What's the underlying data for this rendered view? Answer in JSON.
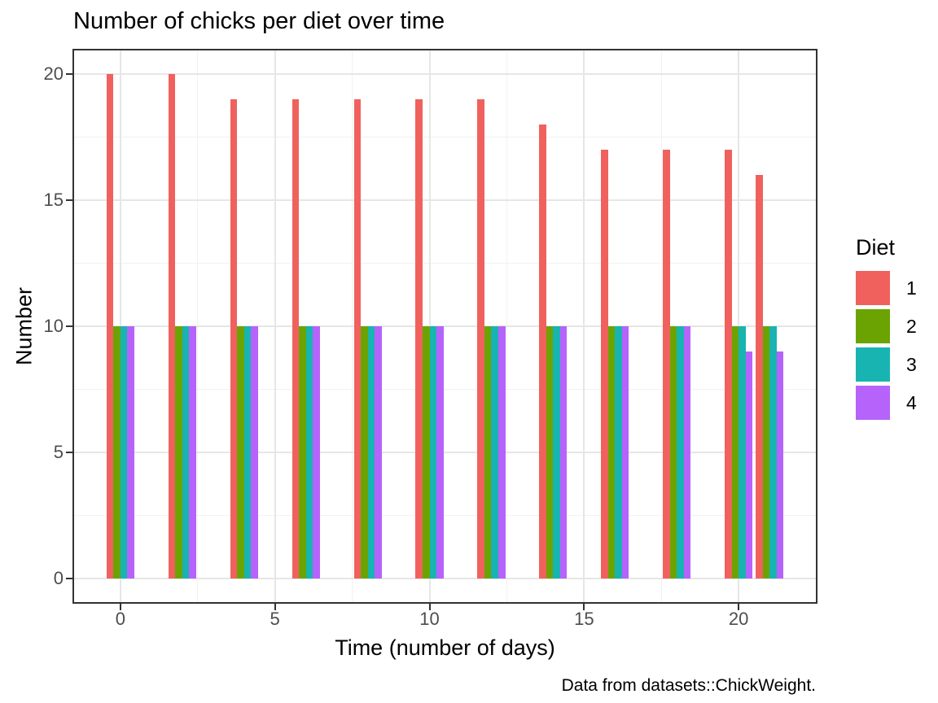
{
  "title": "Number of chicks per diet over time",
  "caption": "Data from datasets::ChickWeight.",
  "legend": {
    "title": "Diet",
    "position": "right"
  },
  "chart_data": {
    "type": "bar",
    "title": "Number of chicks per diet over time",
    "xlabel": "Time (number of days)",
    "ylabel": "Number",
    "x": [
      0,
      2,
      4,
      6,
      8,
      10,
      12,
      14,
      16,
      18,
      20,
      21
    ],
    "series": [
      {
        "name": "1",
        "color": "#F0615D",
        "values": [
          20,
          20,
          19,
          19,
          19,
          19,
          19,
          18,
          17,
          17,
          17,
          16
        ]
      },
      {
        "name": "2",
        "color": "#6BA402",
        "values": [
          10,
          10,
          10,
          10,
          10,
          10,
          10,
          10,
          10,
          10,
          10,
          10
        ]
      },
      {
        "name": "3",
        "color": "#18B4B1",
        "values": [
          10,
          10,
          10,
          10,
          10,
          10,
          10,
          10,
          10,
          10,
          10,
          10
        ]
      },
      {
        "name": "4",
        "color": "#B663FB",
        "values": [
          10,
          10,
          10,
          10,
          10,
          10,
          10,
          10,
          10,
          10,
          9,
          9
        ]
      }
    ],
    "x_ticks": [
      0,
      5,
      10,
      15,
      20
    ],
    "y_ticks": [
      0,
      5,
      10,
      15,
      20
    ],
    "x_minor_ticks": [
      2.5,
      7.5,
      12.5,
      17.5
    ],
    "y_minor_ticks": [
      2.5,
      7.5,
      12.5,
      17.5
    ],
    "xlim": [
      -1.55,
      22.55
    ],
    "ylim": [
      -1,
      21
    ],
    "bar_group_width": 0.9,
    "grid": true,
    "legend_position": "right"
  },
  "colors": {
    "background": "#FFFFFF",
    "panel_border": "#333333",
    "grid_major": "#E6E6E6",
    "grid_minor": "#F1F1F1",
    "tick_mark": "#333333",
    "tick_label": "#4D4D4D",
    "text": "#000000"
  }
}
